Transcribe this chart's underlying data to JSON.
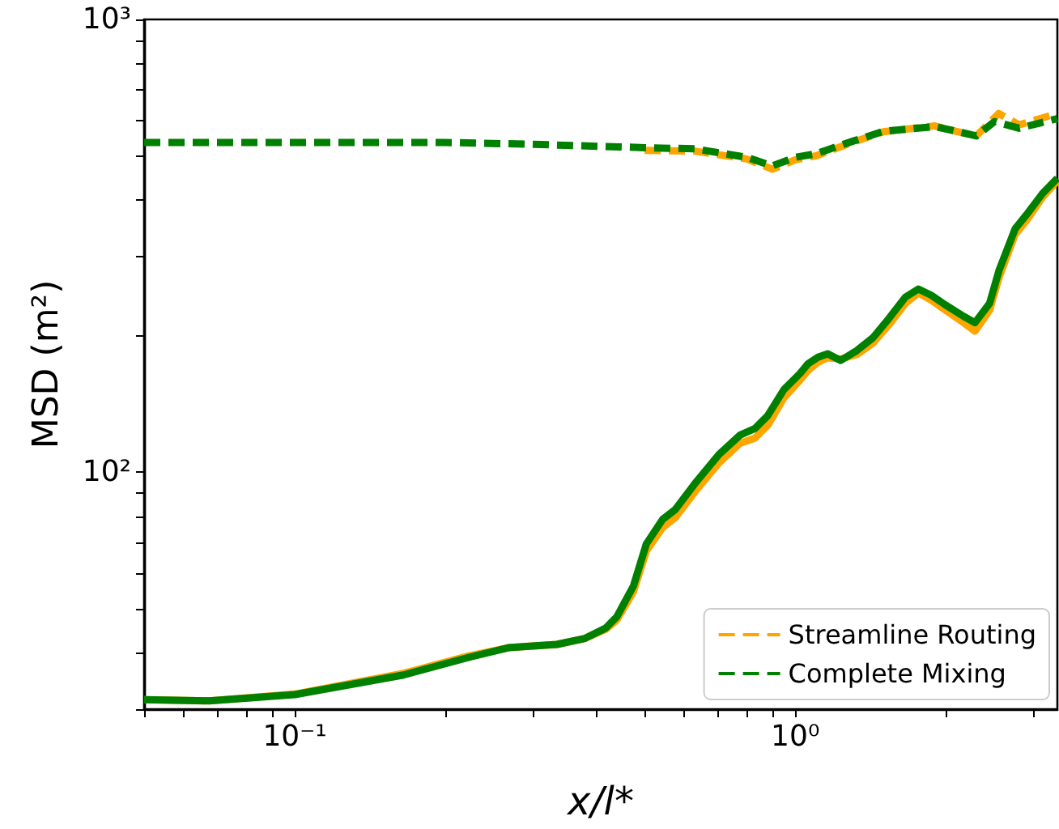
{
  "chart_data": {
    "type": "line",
    "xlabel": "x/l*",
    "ylabel": "MSD (m²)",
    "log": "xy",
    "marker": "none",
    "legend": "bottom right",
    "xlim": [
      0.05,
      3.34
    ],
    "ylim": [
      30,
      1000
    ],
    "xticks": [
      {
        "value": 0.05,
        "label": null
      },
      {
        "value": 0.06,
        "label": null
      },
      {
        "value": 0.07,
        "label": null
      },
      {
        "value": 0.08,
        "label": null
      },
      {
        "value": 0.09,
        "label": null
      },
      {
        "value": 0.1,
        "label": "10⁻¹"
      },
      {
        "value": 0.2,
        "label": null
      },
      {
        "value": 0.3,
        "label": null
      },
      {
        "value": 0.4,
        "label": null
      },
      {
        "value": 0.5,
        "label": null
      },
      {
        "value": 0.6,
        "label": null
      },
      {
        "value": 0.7,
        "label": null
      },
      {
        "value": 0.8,
        "label": null
      },
      {
        "value": 0.9,
        "label": null
      },
      {
        "value": 1,
        "label": "10⁰"
      },
      {
        "value": 2,
        "label": null
      },
      {
        "value": 3,
        "label": null
      }
    ],
    "yticks": [
      {
        "value": 30,
        "label": null
      },
      {
        "value": 40,
        "label": null
      },
      {
        "value": 50,
        "label": null
      },
      {
        "value": 60,
        "label": null
      },
      {
        "value": 70,
        "label": null
      },
      {
        "value": 80,
        "label": null
      },
      {
        "value": 90,
        "label": null
      },
      {
        "value": 100,
        "label": "10²"
      },
      {
        "value": 200,
        "label": null
      },
      {
        "value": 300,
        "label": null
      },
      {
        "value": 400,
        "label": null
      },
      {
        "value": 500,
        "label": null
      },
      {
        "value": 600,
        "label": null
      },
      {
        "value": 700,
        "label": null
      },
      {
        "value": 800,
        "label": null
      },
      {
        "value": 900,
        "label": null
      },
      {
        "value": 1000,
        "label": "10³"
      }
    ],
    "series": [
      {
        "name": "Streamline Routing",
        "color": "#ffa500",
        "line_style": "dashed",
        "x": [
          0.5,
          0.63,
          0.8,
          0.9,
          1.0,
          1.1,
          1.3,
          1.5,
          1.9,
          2.1,
          2.3,
          2.55,
          2.8,
          3.34
        ],
        "values": [
          514,
          512,
          492,
          467,
          490,
          500,
          535,
          565,
          582,
          566,
          553,
          620,
          585,
          620
        ]
      },
      {
        "name": "Complete Mixing",
        "color": "#008000",
        "line_style": "dashed",
        "x": [
          0.05,
          0.1,
          0.2,
          0.3,
          0.5,
          0.63,
          0.8,
          0.9,
          1.0,
          1.1,
          1.3,
          1.5,
          1.9,
          2.1,
          2.3,
          2.5,
          2.8,
          3.34
        ],
        "values": [
          535,
          535,
          535,
          530,
          521,
          518,
          496,
          475,
          496,
          505,
          538,
          566,
          580,
          566,
          553,
          595,
          575,
          604
        ]
      },
      {
        "color": "#ffa500",
        "line_style": "solid",
        "x": [
          0.05,
          0.0674,
          0.1,
          0.165,
          0.222,
          0.267,
          0.334,
          0.38,
          0.418,
          0.44,
          0.475,
          0.504,
          0.543,
          0.576,
          0.63,
          0.704,
          0.776,
          0.83,
          0.881,
          0.949,
          1.023,
          1.061,
          1.11,
          1.161,
          1.232,
          1.327,
          1.43,
          1.54,
          1.66,
          1.762,
          1.87,
          1.998,
          2.17,
          2.286,
          2.445,
          2.556,
          2.75,
          2.9,
          3.12,
          3.34
        ],
        "values": [
          31.5,
          31.3,
          32.4,
          36.0,
          39.3,
          41.0,
          41.7,
          43.0,
          45.0,
          47.2,
          54.5,
          67.0,
          75.5,
          79.5,
          90.5,
          105,
          116,
          119,
          127,
          146,
          160,
          168,
          175,
          179,
          178,
          182,
          193,
          212,
          236,
          249,
          240,
          228,
          214,
          205,
          228,
          270,
          335,
          360,
          405,
          440
        ]
      },
      {
        "color": "#008000",
        "line_style": "solid",
        "x": [
          0.05,
          0.0674,
          0.1,
          0.165,
          0.222,
          0.267,
          0.334,
          0.38,
          0.418,
          0.44,
          0.475,
          0.504,
          0.543,
          0.576,
          0.63,
          0.704,
          0.776,
          0.83,
          0.881,
          0.949,
          1.023,
          1.061,
          1.11,
          1.161,
          1.232,
          1.327,
          1.43,
          1.54,
          1.66,
          1.762,
          1.87,
          1.998,
          2.17,
          2.286,
          2.445,
          2.556,
          2.75,
          2.9,
          3.12,
          3.34
        ],
        "values": [
          31.5,
          31.3,
          32.3,
          35.7,
          39.0,
          41.0,
          41.7,
          43.0,
          45.3,
          48.0,
          56.1,
          69.5,
          78.7,
          82.8,
          94.4,
          109.5,
          120.9,
          124.9,
          133.4,
          152.3,
          165.5,
          173.8,
          179.6,
          182.7,
          176.6,
          185.7,
          198.3,
          218.9,
          243.7,
          254,
          246,
          234,
          221,
          214,
          236,
          280,
          345,
          371,
          413,
          446
        ]
      }
    ]
  }
}
